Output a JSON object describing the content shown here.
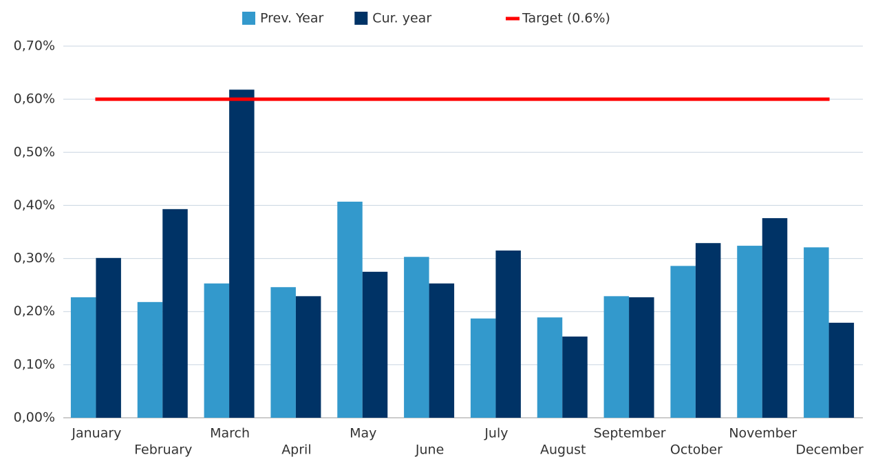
{
  "chart_data": {
    "type": "bar",
    "categories": [
      "January",
      "February",
      "March",
      "April",
      "May",
      "June",
      "July",
      "August",
      "September",
      "October",
      "November",
      "December"
    ],
    "series": [
      {
        "name": "Prev. Year",
        "color": "#3399cc",
        "values": [
          0.227,
          0.218,
          0.253,
          0.246,
          0.407,
          0.303,
          0.187,
          0.189,
          0.229,
          0.286,
          0.324,
          0.321
        ]
      },
      {
        "name": "Cur. year",
        "color": "#003366",
        "values": [
          0.301,
          0.393,
          0.618,
          0.229,
          0.275,
          0.253,
          0.315,
          0.153,
          0.227,
          0.329,
          0.376,
          0.179
        ]
      }
    ],
    "target": {
      "name": "Target (0.6%)",
      "value": 0.6,
      "color": "#ff0000"
    },
    "ylim": [
      0,
      0.7
    ],
    "yticks": [
      {
        "value": 0,
        "label": "0,00%"
      },
      {
        "value": 0.1,
        "label": "0,10%"
      },
      {
        "value": 0.2,
        "label": "0,20%"
      },
      {
        "value": 0.3,
        "label": "0,30%"
      },
      {
        "value": 0.4,
        "label": "0,40%"
      },
      {
        "value": 0.5,
        "label": "0,50%"
      },
      {
        "value": 0.6,
        "label": "0,60%"
      },
      {
        "value": 0.7,
        "label": "0,70%"
      }
    ],
    "grid": true,
    "legend": "top"
  }
}
